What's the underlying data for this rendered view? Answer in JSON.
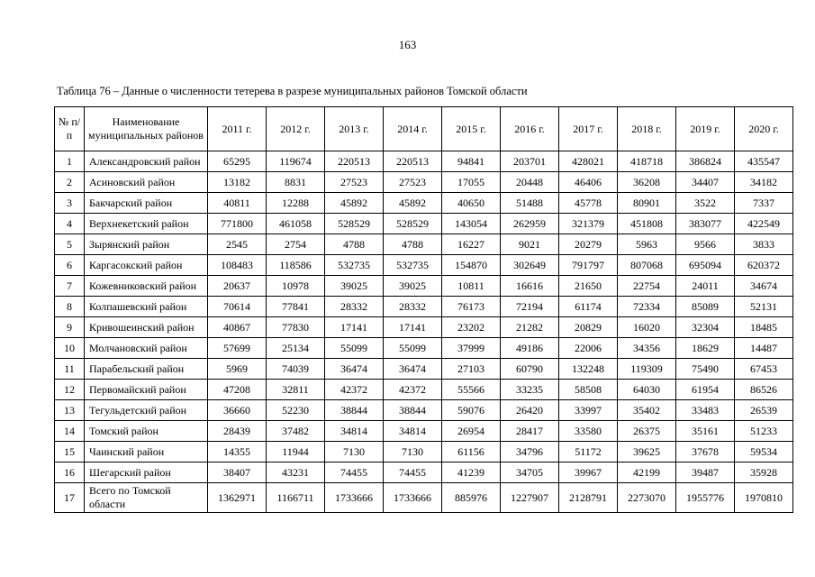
{
  "page": {
    "number": "163",
    "caption": "Таблица 76 – Данные о численности тетерева в разрезе муниципальных районов Томской области"
  },
  "table": {
    "headers": [
      "№ п/п",
      "Наименование муниципальных районов",
      "2011 г.",
      "2012 г.",
      "2013 г.",
      "2014 г.",
      "2015 г.",
      "2016 г.",
      "2017 г.",
      "2018 г.",
      "2019 г.",
      "2020 г."
    ],
    "rows": [
      {
        "num": "1",
        "name": "Александровский район",
        "values": [
          "65295",
          "119674",
          "220513",
          "220513",
          "94841",
          "203701",
          "428021",
          "418718",
          "386824",
          "435547"
        ]
      },
      {
        "num": "2",
        "name": "Асиновский район",
        "values": [
          "13182",
          "8831",
          "27523",
          "27523",
          "17055",
          "20448",
          "46406",
          "36208",
          "34407",
          "34182"
        ]
      },
      {
        "num": "3",
        "name": "Бакчарский район",
        "values": [
          "40811",
          "12288",
          "45892",
          "45892",
          "40650",
          "51488",
          "45778",
          "80901",
          "3522",
          "7337"
        ]
      },
      {
        "num": "4",
        "name": "Верхнекетский район",
        "values": [
          "771800",
          "461058",
          "528529",
          "528529",
          "143054",
          "262959",
          "321379",
          "451808",
          "383077",
          "422549"
        ]
      },
      {
        "num": "5",
        "name": "Зырянский район",
        "values": [
          "2545",
          "2754",
          "4788",
          "4788",
          "16227",
          "9021",
          "20279",
          "5963",
          "9566",
          "3833"
        ]
      },
      {
        "num": "6",
        "name": "Каргасокский район",
        "values": [
          "108483",
          "118586",
          "532735",
          "532735",
          "154870",
          "302649",
          "791797",
          "807068",
          "695094",
          "620372"
        ]
      },
      {
        "num": "7",
        "name": "Кожевниковский район",
        "values": [
          "20637",
          "10978",
          "39025",
          "39025",
          "10811",
          "16616",
          "21650",
          "22754",
          "24011",
          "34674"
        ]
      },
      {
        "num": "8",
        "name": "Колпашевский район",
        "values": [
          "70614",
          "77841",
          "28332",
          "28332",
          "76173",
          "72194",
          "61174",
          "72334",
          "85089",
          "52131"
        ]
      },
      {
        "num": "9",
        "name": "Кривошеинский район",
        "values": [
          "40867",
          "77830",
          "17141",
          "17141",
          "23202",
          "21282",
          "20829",
          "16020",
          "32304",
          "18485"
        ]
      },
      {
        "num": "10",
        "name": "Молчановский район",
        "values": [
          "57699",
          "25134",
          "55099",
          "55099",
          "37999",
          "49186",
          "22006",
          "34356",
          "18629",
          "14487"
        ]
      },
      {
        "num": "11",
        "name": "Парабельский район",
        "values": [
          "5969",
          "74039",
          "36474",
          "36474",
          "27103",
          "60790",
          "132248",
          "119309",
          "75490",
          "67453"
        ]
      },
      {
        "num": "12",
        "name": "Первомайский район",
        "values": [
          "47208",
          "32811",
          "42372",
          "42372",
          "55566",
          "33235",
          "58508",
          "64030",
          "61954",
          "86526"
        ]
      },
      {
        "num": "13",
        "name": "Тегульдетский район",
        "values": [
          "36660",
          "52230",
          "38844",
          "38844",
          "59076",
          "26420",
          "33997",
          "35402",
          "33483",
          "26539"
        ]
      },
      {
        "num": "14",
        "name": "Томский район",
        "values": [
          "28439",
          "37482",
          "34814",
          "34814",
          "26954",
          "28417",
          "33580",
          "26375",
          "35161",
          "51233"
        ]
      },
      {
        "num": "15",
        "name": "Чаинский район",
        "values": [
          "14355",
          "11944",
          "7130",
          "7130",
          "61156",
          "34796",
          "51172",
          "39625",
          "37678",
          "59534"
        ]
      },
      {
        "num": "16",
        "name": "Шегарский район",
        "values": [
          "38407",
          "43231",
          "74455",
          "74455",
          "41239",
          "34705",
          "39967",
          "42199",
          "39487",
          "35928"
        ]
      },
      {
        "num": "17",
        "name": "Всего по Томской области",
        "values": [
          "1362971",
          "1166711",
          "1733666",
          "1733666",
          "885976",
          "1227907",
          "2128791",
          "2273070",
          "1955776",
          "1970810"
        ]
      }
    ]
  }
}
